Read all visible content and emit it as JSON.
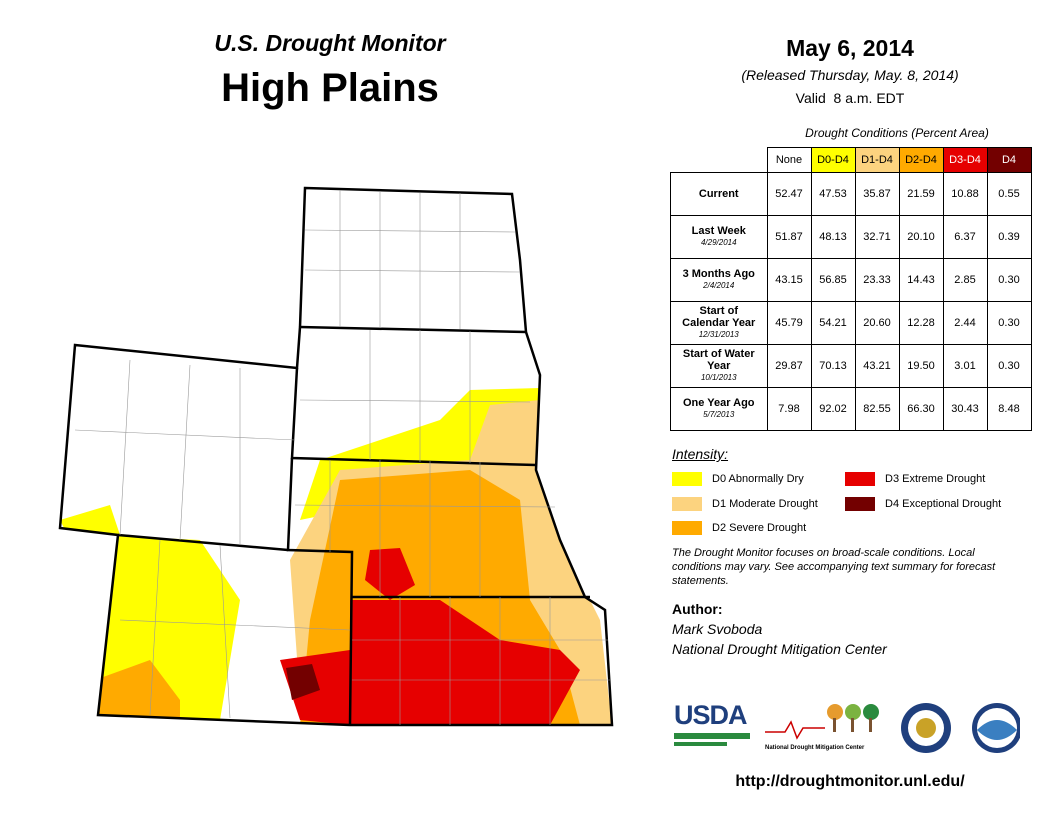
{
  "header": {
    "product": "U.S. Drought Monitor",
    "region": "High Plains",
    "date": "May 6, 2014",
    "released": "(Released Thursday, May. 8, 2014)",
    "valid": "Valid  8 a.m. EDT"
  },
  "table": {
    "caption": "Drought Conditions (Percent Area)",
    "columns": [
      "None",
      "D0-D4",
      "D1-D4",
      "D2-D4",
      "D3-D4",
      "D4"
    ],
    "column_colors": [
      "#ffffff",
      "#ffff00",
      "#fcd37f",
      "#ffaa00",
      "#e60000",
      "#730000"
    ],
    "rows": [
      {
        "label": "Current",
        "values": [
          "52.47",
          "47.53",
          "35.87",
          "21.59",
          "10.88",
          "0.55"
        ]
      },
      {
        "label": "Last Week",
        "date": "4/29/2014",
        "values": [
          "51.87",
          "48.13",
          "32.71",
          "20.10",
          "6.37",
          "0.39"
        ]
      },
      {
        "label": "3 Months Ago",
        "date": "2/4/2014",
        "values": [
          "43.15",
          "56.85",
          "23.33",
          "14.43",
          "2.85",
          "0.30"
        ]
      },
      {
        "label": "Start of Calendar Year",
        "date": "12/31/2013",
        "values": [
          "45.79",
          "54.21",
          "20.60",
          "12.28",
          "2.44",
          "0.30"
        ]
      },
      {
        "label": "Start of Water Year",
        "date": "10/1/2013",
        "values": [
          "29.87",
          "70.13",
          "43.21",
          "19.50",
          "3.01",
          "0.30"
        ]
      },
      {
        "label": "One Year Ago",
        "date": "5/7/2013",
        "values": [
          "7.98",
          "92.02",
          "82.55",
          "66.30",
          "30.43",
          "8.48"
        ]
      }
    ]
  },
  "legend": {
    "title": "Intensity:",
    "items": [
      {
        "label": "D0 Abnormally Dry",
        "color": "#ffff00"
      },
      {
        "label": "D1 Moderate Drought",
        "color": "#fcd37f"
      },
      {
        "label": "D2 Severe Drought",
        "color": "#ffaa00"
      },
      {
        "label": "D3 Extreme Drought",
        "color": "#e60000"
      },
      {
        "label": "D4 Exceptional Drought",
        "color": "#730000"
      }
    ]
  },
  "note": "The Drought Monitor focuses on broad-scale conditions. Local conditions may vary. See accompanying text summary for forecast statements.",
  "author": {
    "heading": "Author:",
    "name": "Mark Svoboda",
    "organization": "National Drought Mitigation Center"
  },
  "logos": {
    "usda": "USDA",
    "ndmc": "National Drought Mitigation Center"
  },
  "url": "http://droughtmonitor.unl.edu/"
}
